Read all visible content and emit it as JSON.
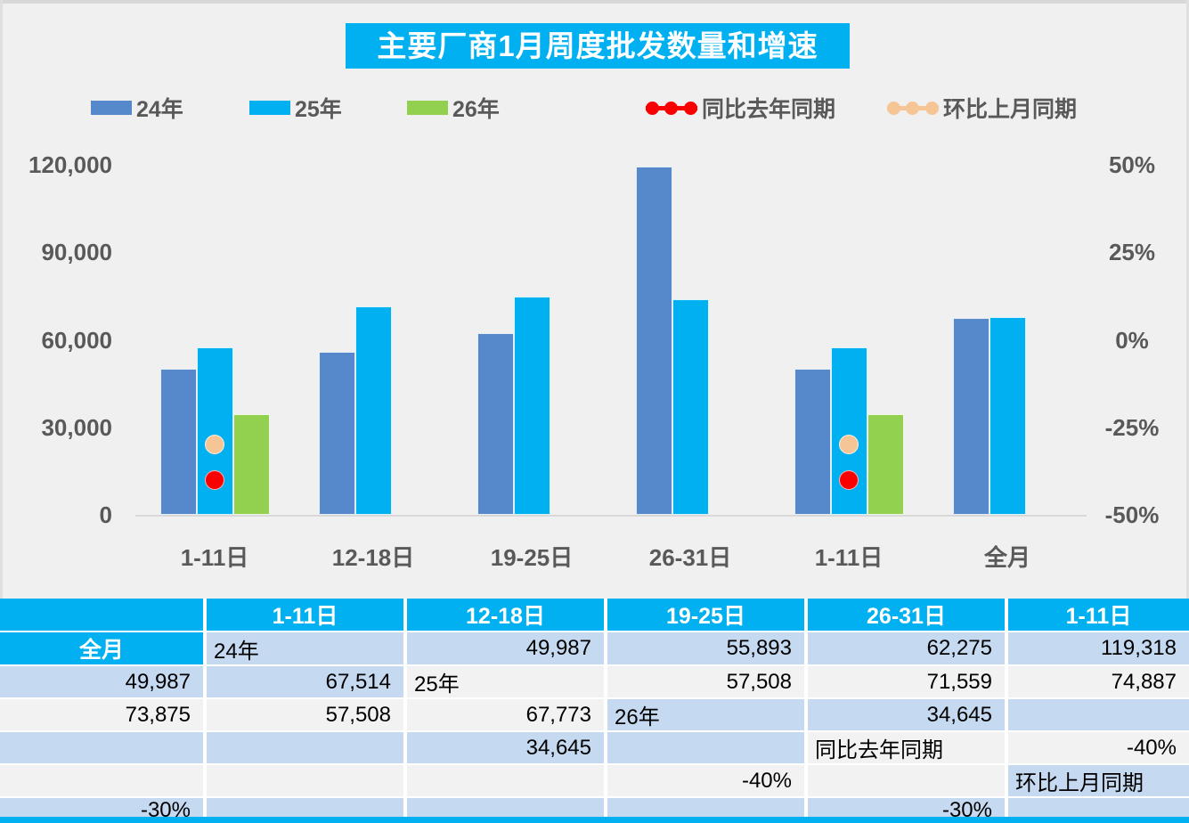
{
  "title": "主要厂商1月周度批发数量和增速",
  "legend": [
    {
      "label": "24年",
      "marker": "bar",
      "color": "#5589CB"
    },
    {
      "label": "25年",
      "marker": "bar",
      "color": "#00B0F0"
    },
    {
      "label": "26年",
      "marker": "bar",
      "color": "#92D050"
    },
    {
      "label": "同比去年同期",
      "marker": "line-dots",
      "color": "#FB0000"
    },
    {
      "label": "环比上月同期",
      "marker": "line-dots",
      "color": "#F6C596"
    }
  ],
  "chart_data": {
    "type": "bar",
    "title": "主要厂商1月周度批发数量和增速",
    "categories": [
      "1-11日",
      "12-18日",
      "19-25日",
      "26-31日",
      "1-11日",
      "全月"
    ],
    "series": [
      {
        "name": "24年",
        "type": "bar",
        "axis": "left",
        "color": "#5589CB",
        "values": [
          49987,
          55893,
          62275,
          119318,
          49987,
          67514
        ]
      },
      {
        "name": "25年",
        "type": "bar",
        "axis": "left",
        "color": "#00B0F0",
        "values": [
          57508,
          71559,
          74887,
          73875,
          57508,
          67773
        ]
      },
      {
        "name": "26年",
        "type": "bar",
        "axis": "left",
        "color": "#92D050",
        "values": [
          34645,
          null,
          null,
          null,
          34645,
          null
        ]
      },
      {
        "name": "同比去年同期",
        "type": "point",
        "axis": "right",
        "color": "#FB0000",
        "values": [
          -0.4,
          null,
          null,
          null,
          -0.4,
          null
        ]
      },
      {
        "name": "环比上月同期",
        "type": "point",
        "axis": "right",
        "color": "#F6C596",
        "values": [
          -0.3,
          null,
          null,
          null,
          -0.3,
          null
        ]
      }
    ],
    "left_axis": {
      "min": 0,
      "max": 120000,
      "ticks": [
        {
          "label": "0",
          "value": 0
        },
        {
          "label": "30,000",
          "value": 30000
        },
        {
          "label": "60,000",
          "value": 60000
        },
        {
          "label": "90,000",
          "value": 90000
        },
        {
          "label": "120,000",
          "value": 120000
        }
      ]
    },
    "right_axis": {
      "min": -0.5,
      "max": 0.5,
      "ticks": [
        {
          "label": "-50%",
          "value": -0.5
        },
        {
          "label": "-25%",
          "value": -0.25
        },
        {
          "label": "0%",
          "value": 0
        },
        {
          "label": "25%",
          "value": 0.25
        },
        {
          "label": "50%",
          "value": 0.5
        }
      ]
    },
    "grid": false,
    "legend_position": "top"
  },
  "table": {
    "header": [
      "",
      "1-11日",
      "12-18日",
      "19-25日",
      "26-31日",
      "1-11日",
      "全月"
    ],
    "rows": [
      {
        "label": "24年",
        "cells": [
          "49,987",
          "55,893",
          "62,275",
          "119,318",
          "49,987",
          "67,514"
        ]
      },
      {
        "label": "25年",
        "cells": [
          "57,508",
          "71,559",
          "74,887",
          "73,875",
          "57,508",
          "67,773"
        ]
      },
      {
        "label": "26年",
        "cells": [
          "34,645",
          "",
          "",
          "",
          "34,645",
          ""
        ]
      },
      {
        "label": "同比去年同期",
        "cells": [
          "-40%",
          "",
          "",
          "",
          "-40%",
          ""
        ]
      },
      {
        "label": "环比上月同期",
        "cells": [
          "-30%",
          "",
          "",
          "",
          "-30%",
          ""
        ]
      }
    ]
  },
  "colors": {
    "accent_cyan": "#00B0F0",
    "bar_24": "#5589CB",
    "bar_25": "#00B0F0",
    "bar_26": "#92D050",
    "dot_yoy": "#FB0000",
    "dot_mom": "#F6C596",
    "table_row_blue": "#C5D9F1",
    "table_row_gray": "#F2F2F2",
    "axis_text": "#595959",
    "background": "#F0F0F0",
    "baseline": "#D9D9D9"
  }
}
